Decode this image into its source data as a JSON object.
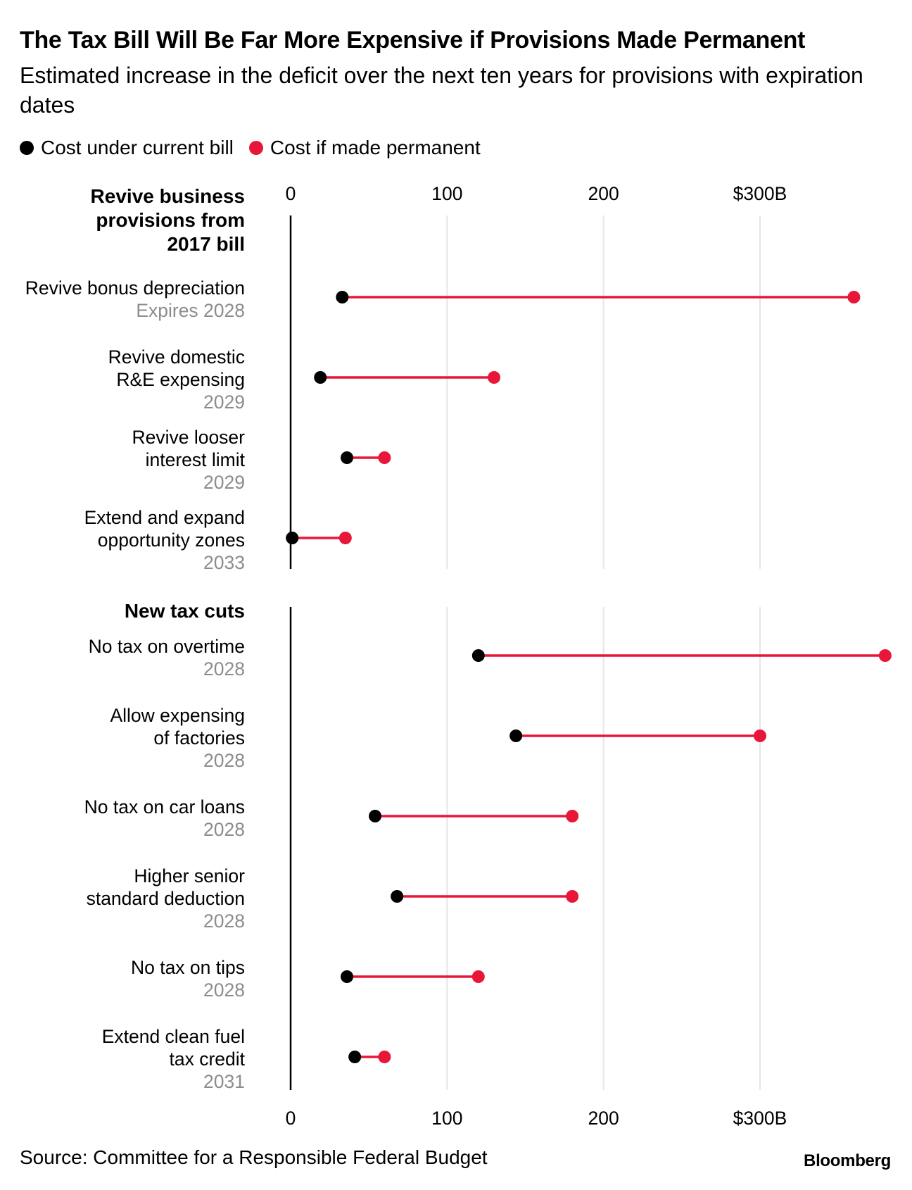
{
  "title": "The Tax Bill Will Be Far More Expensive if Provisions Made Permanent",
  "subtitle": "Estimated increase in the deficit over the next ten years for provisions with expiration dates",
  "legend": [
    {
      "label": "Cost under current bill",
      "color": "#000000"
    },
    {
      "label": "Cost if made permanent",
      "color": "#e8173a"
    }
  ],
  "source": "Source: Committee for a Responsible Federal Budget",
  "brand": "Bloomberg",
  "colors": {
    "current": "#000000",
    "permanent": "#e8173a",
    "grid": "#e6e6e6",
    "axis": "#000000"
  },
  "chart_data": {
    "type": "dumbbell",
    "x_ticks": [
      {
        "value": 0,
        "label": "0"
      },
      {
        "value": 100,
        "label": "100"
      },
      {
        "value": 200,
        "label": "200"
      },
      {
        "value": 300,
        "label": "$300B"
      }
    ],
    "xlim": [
      0,
      380
    ],
    "series": [
      {
        "name": "Cost under current bill",
        "key": "current"
      },
      {
        "name": "Cost if made permanent",
        "key": "permanent"
      }
    ],
    "groups": [
      {
        "title": [
          "Revive business",
          "provisions from",
          "2017 bill"
        ],
        "rows": [
          {
            "label": [
              "Revive bonus depreciation"
            ],
            "sub": "Expires 2028",
            "current": 33,
            "permanent": 360
          },
          {
            "label": [
              "Revive domestic",
              "R&E expensing"
            ],
            "sub": "2029",
            "current": 19,
            "permanent": 130
          },
          {
            "label": [
              "Revive looser",
              "interest limit"
            ],
            "sub": "2029",
            "current": 36,
            "permanent": 60
          },
          {
            "label": [
              "Extend and expand",
              "opportunity zones"
            ],
            "sub": "2033",
            "current": 1,
            "permanent": 35
          }
        ]
      },
      {
        "title": [
          "New tax cuts"
        ],
        "rows": [
          {
            "label": [
              "No tax on overtime"
            ],
            "sub": "2028",
            "current": 120,
            "permanent": 380
          },
          {
            "label": [
              "Allow expensing",
              "of factories"
            ],
            "sub": "2028",
            "current": 144,
            "permanent": 300
          },
          {
            "label": [
              "No tax on car loans"
            ],
            "sub": "2028",
            "current": 54,
            "permanent": 180
          },
          {
            "label": [
              "Higher senior",
              "standard deduction"
            ],
            "sub": "2028",
            "current": 68,
            "permanent": 180
          },
          {
            "label": [
              "No tax on tips"
            ],
            "sub": "2028",
            "current": 36,
            "permanent": 120
          },
          {
            "label": [
              "Extend clean fuel",
              "tax credit"
            ],
            "sub": "2031",
            "current": 41,
            "permanent": 60
          }
        ]
      }
    ]
  }
}
